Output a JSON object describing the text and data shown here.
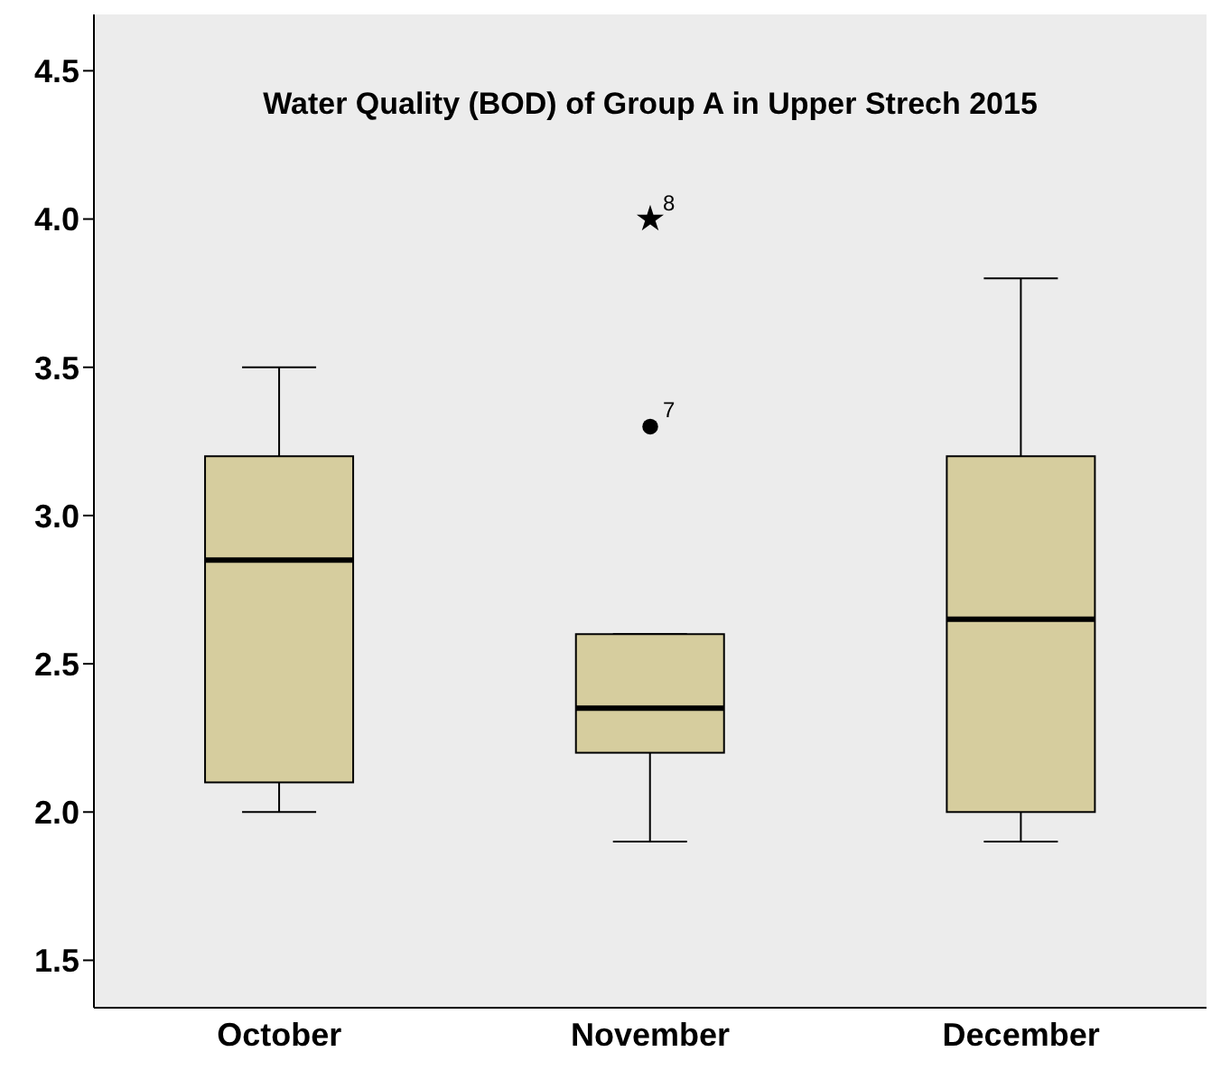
{
  "chart_data": {
    "type": "box",
    "title": "Water Quality (BOD) of Group A in Upper Strech 2015",
    "categories": [
      "October",
      "November",
      "December"
    ],
    "series": [
      {
        "type": "box",
        "color": "#d6cd9e",
        "boxes": [
          {
            "low": 2.0,
            "q1": 2.1,
            "median": 2.85,
            "q3": 3.2,
            "high": 3.5
          },
          {
            "low": 1.9,
            "q1": 2.2,
            "median": 2.35,
            "q3": 2.6,
            "high": 2.6
          },
          {
            "low": 1.9,
            "q1": 2.0,
            "median": 2.65,
            "q3": 3.2,
            "high": 3.8
          }
        ]
      },
      {
        "type": "scatter",
        "marker": "circle",
        "color": "#000000",
        "x": [
          "November"
        ],
        "values": [
          3.3
        ]
      },
      {
        "type": "scatter",
        "marker": "star",
        "color": "#000000",
        "x": [
          "November"
        ],
        "values": [
          4.0
        ]
      }
    ],
    "annotations": [
      {
        "text": "7",
        "x": "November",
        "y": 3.3
      },
      {
        "text": "8",
        "x": "November",
        "y": 4.0
      }
    ],
    "ylim": [
      1.34,
      4.69
    ],
    "yticks": [
      {
        "value": 1.5,
        "label": "1.5"
      },
      {
        "value": 2,
        "label": "2.0"
      },
      {
        "value": 2.5,
        "label": "2.5"
      },
      {
        "value": 3,
        "label": "3.0"
      },
      {
        "value": 3.5,
        "label": "3.5"
      },
      {
        "value": 4,
        "label": "4.0"
      },
      {
        "value": 4.5,
        "label": "4.5"
      }
    ]
  }
}
